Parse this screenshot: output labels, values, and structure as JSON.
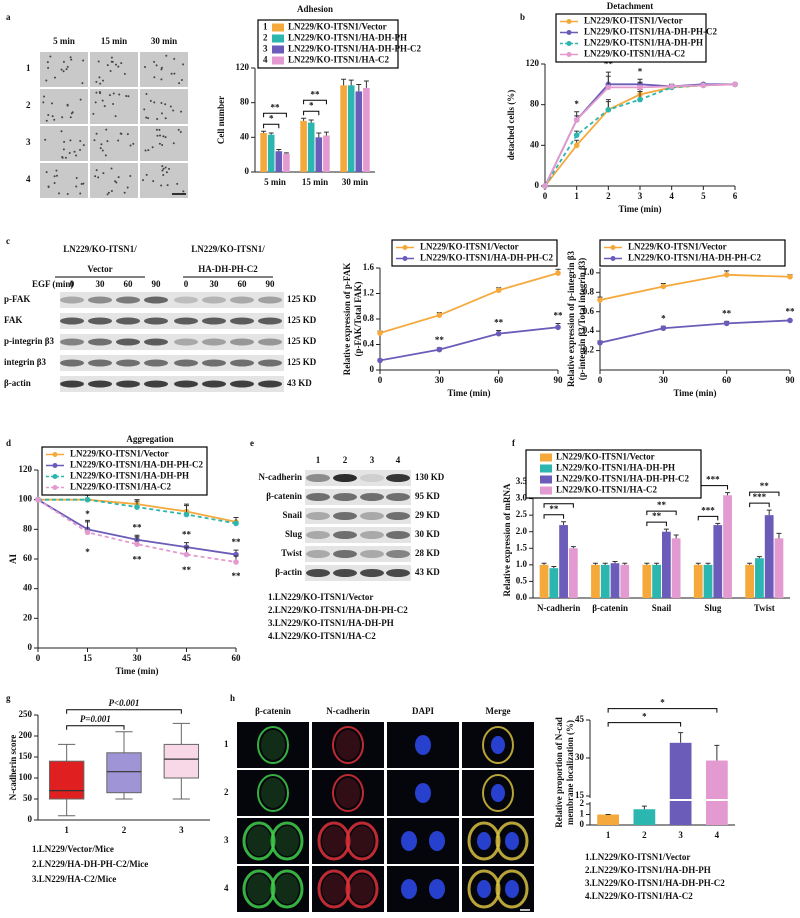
{
  "panel_labels": [
    "a",
    "b",
    "c",
    "d",
    "e",
    "f",
    "g",
    "h"
  ],
  "micrographs": {
    "columns": [
      "5 min",
      "15 min",
      "30 min"
    ],
    "rows": [
      "1",
      "2",
      "3",
      "4"
    ]
  },
  "blot_c": {
    "groups": [
      [
        "LN229/KO-ITSN1/",
        "Vector"
      ],
      [
        "LN229/KO-ITSN1/",
        "HA-DH-PH-C2"
      ]
    ],
    "treatment": "EGF (min)",
    "lanes": [
      "0",
      "30",
      "60",
      "90",
      "0",
      "30",
      "60",
      "90"
    ],
    "rows": [
      "p-FAK",
      "FAK",
      "p-integrin β3",
      "integrin β3",
      "β-actin"
    ],
    "sizes": [
      "125 KD",
      "125 KD",
      "125 KD",
      "125 KD",
      "43 KD"
    ]
  },
  "blot_e": {
    "lanes": [
      "1",
      "2",
      "3",
      "4"
    ],
    "rows": [
      "N-cadherin",
      "β-catenin",
      "Snail",
      "Slug",
      "Twist",
      "β-actin"
    ],
    "sizes": [
      "130 KD",
      "95 KD",
      "29 KD",
      "30 KD",
      "28 KD",
      "43 KD"
    ],
    "legend": [
      "1.LN229/KO-ITSN1/Vector",
      "2.LN229/KO-ITSN1/HA-DH-PH-C2",
      "3.LN229/KO-ITSN1/HA-DH-PH",
      "4.LN229/KO-ITSN1/HA-C2"
    ]
  },
  "legend_g": [
    "1.LN229/Vector/Mice",
    "2.LN229/HA-DH-PH-C2/Mice",
    "3.LN229/HA-C2/Mice"
  ],
  "images_h": {
    "columns": [
      "β-catenin",
      "N-cadherin",
      "DAPI",
      "Merge"
    ],
    "rows": [
      "1",
      "2",
      "3",
      "4"
    ]
  },
  "legend_h": [
    "1.LN229/KO-ITSN1/Vector",
    "2.LN229/KO-ITSN1/HA-DH-PH",
    "3.LN229/KO-ITSN1/HA-DH-PH-C2",
    "4.LN229/KO-ITSN1/HA-C2"
  ],
  "chart_data": [
    {
      "type": "bar",
      "title": "Adhesion",
      "ylabel": "Cell number",
      "categories": [
        "5 min",
        "15 min",
        "30 min"
      ],
      "ylim": [
        0,
        120
      ],
      "yticks": [
        0,
        40,
        80,
        120
      ],
      "series": [
        {
          "label": "1",
          "name": "LN229/KO-ITSN1/Vector",
          "color": "#f5a93b",
          "values": [
            45,
            59,
            100
          ],
          "errors": [
            2,
            3,
            7
          ]
        },
        {
          "label": "2",
          "name": "LN229/KO-ITSN1/HA-DH-PH",
          "color": "#2bb6b0",
          "values": [
            43,
            57,
            100
          ],
          "errors": [
            2,
            3,
            6
          ]
        },
        {
          "label": "3",
          "name": "LN229/KO-ITSN1/HA-DH-PH-C2",
          "color": "#6a5cb8",
          "values": [
            24,
            40,
            93
          ],
          "errors": [
            2,
            5,
            8
          ]
        },
        {
          "label": "4",
          "name": "LN229/KO-ITSN1/HA-C2",
          "color": "#e39ad0",
          "values": [
            21,
            42,
            97
          ],
          "errors": [
            1,
            4,
            8
          ]
        }
      ],
      "annotations": [
        {
          "category": 0,
          "from": 0,
          "to": 2,
          "text": "*"
        },
        {
          "category": 0,
          "from": 0,
          "to": 3,
          "text": "**"
        },
        {
          "category": 1,
          "from": 0,
          "to": 2,
          "text": "*"
        },
        {
          "category": 1,
          "from": 0,
          "to": 3,
          "text": "**"
        }
      ]
    },
    {
      "type": "line",
      "title": "Detachment",
      "ylabel": "detached cells (%)",
      "xlabel": "Time (min)",
      "x": [
        0,
        1,
        2,
        3,
        4,
        5,
        6
      ],
      "xlim": [
        0,
        6
      ],
      "xticks": [
        0,
        1,
        2,
        3,
        4,
        5,
        6
      ],
      "ylim": [
        0,
        120
      ],
      "yticks": [
        0,
        40,
        80,
        120
      ],
      "series": [
        {
          "name": "LN229/KO-ITSN1/Vector",
          "color": "#f5a93b",
          "values": [
            0,
            40,
            75,
            90,
            97,
            99,
            100
          ],
          "errors": [
            0,
            5,
            10,
            3,
            2,
            1,
            1
          ]
        },
        {
          "name": "LN229/KO-ITSN1/HA-DH-PH-C2",
          "color": "#6a5cb8",
          "values": [
            0,
            65,
            100,
            100,
            98,
            100,
            100
          ],
          "errors": [
            0,
            4,
            8,
            5,
            2,
            1,
            1
          ]
        },
        {
          "name": "LN229/KO-ITSN1/HA-DH-PH",
          "color": "#2bb6b0",
          "dashed": true,
          "values": [
            0,
            50,
            75,
            85,
            97,
            99,
            100
          ],
          "errors": [
            0,
            4,
            8,
            10,
            2,
            1,
            1
          ]
        },
        {
          "name": "LN229/KO-ITSN1/HA-C2",
          "color": "#e39ad0",
          "values": [
            0,
            65,
            97,
            97,
            98,
            99,
            100
          ],
          "errors": [
            0,
            8,
            15,
            5,
            2,
            1,
            1
          ]
        }
      ],
      "annotations": [
        {
          "index": 1,
          "text": "*"
        },
        {
          "index": 2,
          "text": "**"
        },
        {
          "index": 3,
          "text": "*"
        }
      ]
    },
    {
      "type": "line",
      "ylabel": [
        "Relative expression of p-FAK",
        "(p-FAK/Total FAK)"
      ],
      "xlabel": "Time (min)",
      "x": [
        0,
        30,
        60,
        90
      ],
      "xlim": [
        0,
        90
      ],
      "xticks": [
        0,
        30,
        60,
        90
      ],
      "ylim": [
        0,
        1.6
      ],
      "yticks": [
        0,
        0.4,
        0.8,
        1.2,
        1.6
      ],
      "series": [
        {
          "name": "LN229/KO-ITSN1/Vector",
          "color": "#f5a93b",
          "values": [
            0.58,
            0.86,
            1.25,
            1.52
          ],
          "errors": [
            0.03,
            0.04,
            0.04,
            0.06
          ]
        },
        {
          "name": "LN229/KO-ITSN1/HA-DH-PH-C2",
          "color": "#6a5cb8",
          "values": [
            0.15,
            0.32,
            0.57,
            0.67
          ],
          "errors": [
            0.02,
            0.03,
            0.05,
            0.06
          ]
        }
      ],
      "annotations": [
        {
          "index": 1,
          "series": 1,
          "side": "above",
          "text": "**"
        },
        {
          "index": 2,
          "series": 1,
          "side": "above",
          "text": "**"
        },
        {
          "index": 3,
          "series": 1,
          "side": "above",
          "text": "**"
        }
      ]
    },
    {
      "type": "line",
      "ylabel": [
        "Relative expression of p-integrin β3",
        "(p-integrin β3/Total integrin β3)"
      ],
      "xlabel": "Time (min)",
      "x": [
        0,
        30,
        60,
        90
      ],
      "xlim": [
        0,
        90
      ],
      "xticks": [
        0,
        30,
        60,
        90
      ],
      "ylim": [
        0,
        1.05
      ],
      "yticks": [
        0.2,
        0.4,
        0.6,
        0.8,
        {
          "value": 1,
          "label": "1.0"
        }
      ],
      "series": [
        {
          "name": "LN229/KO-ITSN1/Vector",
          "color": "#f5a93b",
          "values": [
            0.72,
            0.86,
            0.98,
            0.96
          ],
          "errors": [
            0.03,
            0.03,
            0.04,
            0.02
          ]
        },
        {
          "name": "LN229/KO-ITSN1/HA-DH-PH-C2",
          "color": "#6a5cb8",
          "values": [
            0.28,
            0.43,
            0.48,
            0.51
          ],
          "errors": [
            0.02,
            0.02,
            0.02,
            0.01
          ]
        }
      ],
      "annotations": [
        {
          "index": 1,
          "series": 1,
          "side": "above",
          "text": "*"
        },
        {
          "index": 2,
          "series": 1,
          "side": "above",
          "text": "**"
        },
        {
          "index": 3,
          "series": 1,
          "side": "above",
          "text": "**"
        }
      ]
    },
    {
      "type": "line",
      "title": "Aggregation",
      "ylabel": "AI",
      "xlabel": "Time (min)",
      "x": [
        0,
        15,
        30,
        45,
        60
      ],
      "xlim": [
        0,
        60
      ],
      "xticks": [
        0,
        15,
        30,
        45,
        60
      ],
      "ylim": [
        0,
        120
      ],
      "yticks": [
        0,
        20,
        40,
        60,
        80,
        100,
        120
      ],
      "series": [
        {
          "name": "LN229/KO-ITSN1/Vector",
          "color": "#f5a93b",
          "values": [
            100,
            100,
            97,
            92,
            85
          ],
          "errors": [
            0,
            3,
            3,
            4,
            3
          ]
        },
        {
          "name": "LN229/KO-ITSN1/HA-DH-PH-C2",
          "color": "#6a5cb8",
          "values": [
            100,
            80,
            73,
            68,
            63
          ],
          "errors": [
            0,
            5,
            3,
            3,
            3
          ]
        },
        {
          "name": "LN229/KO-ITSN1/HA-DH-PH",
          "color": "#2bb6b0",
          "dashed": true,
          "values": [
            100,
            100,
            95,
            90,
            84
          ],
          "errors": [
            0,
            5,
            4,
            7,
            4
          ]
        },
        {
          "name": "LN229/KO-ITSN1/HA-C2",
          "color": "#e39ad0",
          "dashed": true,
          "values": [
            100,
            78,
            70,
            63,
            58
          ],
          "errors": [
            0,
            8,
            5,
            5,
            4
          ]
        }
      ],
      "annotations": [
        {
          "index": 1,
          "series": 1,
          "side": "above",
          "text": "*"
        },
        {
          "index": 1,
          "series": 3,
          "side": "below",
          "text": "*"
        },
        {
          "index": 2,
          "series": 1,
          "side": "above",
          "text": "**"
        },
        {
          "index": 2,
          "series": 3,
          "side": "below",
          "text": "**"
        },
        {
          "index": 3,
          "series": 1,
          "side": "above",
          "text": "**"
        },
        {
          "index": 3,
          "series": 3,
          "side": "below",
          "text": "**"
        },
        {
          "index": 4,
          "series": 1,
          "side": "above",
          "text": "**"
        },
        {
          "index": 4,
          "series": 3,
          "side": "below",
          "text": "**"
        }
      ]
    },
    {
      "type": "bar",
      "ylabel": "Relative expression of mRNA",
      "categories": [
        "N-cadherin",
        "β-catenin",
        "Snail",
        "Slug",
        "Twist"
      ],
      "ylim": [
        0,
        3.5
      ],
      "yticks": [
        {
          "value": 0,
          "label": "0.0"
        },
        0.5,
        {
          "value": 1,
          "label": "1.0"
        },
        1.5,
        {
          "value": 2,
          "label": "2.0"
        },
        2.5,
        {
          "value": 3,
          "label": "3.0"
        },
        3.5
      ],
      "series": [
        {
          "name": "LN229/KO-ITSN1/Vector",
          "color": "#f5a93b",
          "values": [
            1.0,
            1.0,
            1.0,
            1.0,
            1.0
          ],
          "errors": [
            0.05,
            0.05,
            0.05,
            0.05,
            0.05
          ]
        },
        {
          "name": "LN229/KO-ITSN1/HA-DH-PH",
          "color": "#2bb6b0",
          "values": [
            0.9,
            1.0,
            1.0,
            1.0,
            1.2
          ],
          "errors": [
            0.05,
            0.05,
            0.05,
            0.05,
            0.05
          ]
        },
        {
          "name": "LN229/KO-ITSN1/HA-DH-PH-C2",
          "color": "#6a5cb8",
          "values": [
            2.2,
            1.05,
            2.0,
            2.2,
            2.5
          ],
          "errors": [
            0.1,
            0.05,
            0.08,
            0.05,
            0.15
          ]
        },
        {
          "name": "LN229/KO-ITSN1/HA-C2",
          "color": "#e39ad0",
          "values": [
            1.5,
            1.0,
            1.8,
            3.1,
            1.8
          ],
          "errors": [
            0.05,
            0.05,
            0.1,
            0.08,
            0.15
          ]
        }
      ],
      "annotations": [
        {
          "category": 0,
          "from": 0,
          "to": 2,
          "text": "**"
        },
        {
          "category": 0,
          "from": 0,
          "to": 3,
          "text": "*"
        },
        {
          "category": 2,
          "from": 0,
          "to": 2,
          "text": "**"
        },
        {
          "category": 2,
          "from": 0,
          "to": 3,
          "text": "**"
        },
        {
          "category": 3,
          "from": 0,
          "to": 2,
          "text": "***"
        },
        {
          "category": 3,
          "from": 0,
          "to": 3,
          "text": "***"
        },
        {
          "category": 4,
          "from": 0,
          "to": 2,
          "text": "***"
        },
        {
          "category": 4,
          "from": 0,
          "to": 3,
          "text": "**"
        }
      ]
    },
    {
      "type": "box",
      "ylabel": "N-cadherin score",
      "categories": [
        "1",
        "2",
        "3"
      ],
      "ylim": [
        0,
        250
      ],
      "yticks": [
        0,
        50,
        100,
        150,
        200,
        250
      ],
      "boxes": [
        {
          "min": 10,
          "q1": 50,
          "median": 70,
          "q3": 140,
          "max": 180,
          "color": "#e02020"
        },
        {
          "min": 50,
          "q1": 65,
          "median": 115,
          "q3": 160,
          "max": 210,
          "color": "#9f95d6"
        },
        {
          "min": 50,
          "q1": 100,
          "median": 145,
          "q3": 180,
          "max": 230,
          "color": "#f8d7e6"
        }
      ],
      "annotations": [
        {
          "from": 0,
          "to": 1,
          "text": "P=0.001"
        },
        {
          "from": 0,
          "to": 2,
          "text": "P<0.001"
        }
      ]
    },
    {
      "type": "bar",
      "ylabel": [
        "Relative proportion of N-cad",
        "membrane localization (%)"
      ],
      "categories": [
        "1",
        "2",
        "3",
        "4"
      ],
      "ylim": [
        0,
        45
      ],
      "axis_break": [
        2,
        15
      ],
      "yticks": [
        0,
        1,
        2,
        15,
        30,
        45
      ],
      "values": [
        1,
        1.5,
        36,
        29
      ],
      "errors": [
        0,
        0.3,
        4,
        6
      ],
      "colors": [
        "#f5a93b",
        "#2bb6b0",
        "#6a5cb8",
        "#e39ad0"
      ],
      "annotations": [
        {
          "from": 0,
          "to": 2,
          "text": "*"
        },
        {
          "from": 0,
          "to": 3,
          "text": "*"
        }
      ]
    }
  ]
}
